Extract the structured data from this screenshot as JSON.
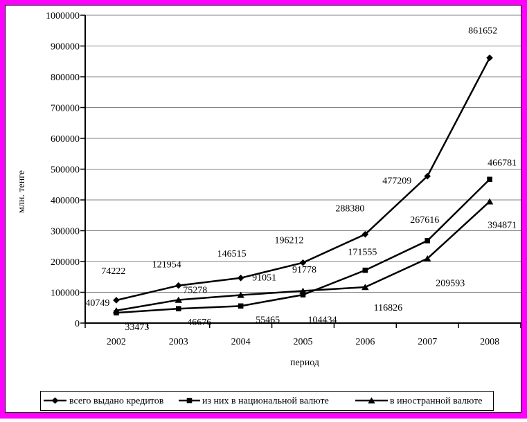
{
  "window": {
    "frame_color": "#ff00ff",
    "canvas_color": "#ffffff",
    "canvas_border_color": "#000000"
  },
  "colors": {
    "grid": "#808080",
    "axis": "#000000",
    "series": "#000000",
    "text": "#000000"
  },
  "chart_data": {
    "type": "line",
    "title": "",
    "xlabel": "период",
    "ylabel": "млн. тенге",
    "categories": [
      "2002",
      "2003",
      "2004",
      "2005",
      "2006",
      "2007",
      "2008"
    ],
    "y_axis": {
      "min": 0,
      "max": 1000000,
      "step": 100000
    },
    "grid": true,
    "legend_position": "bottom",
    "series": [
      {
        "name": "всего выдано кредитов",
        "marker": "diamond",
        "color": "#000000",
        "values": [
          74222,
          121954,
          146515,
          196212,
          288380,
          477209,
          861652
        ]
      },
      {
        "name": "из них в национальной валюте",
        "marker": "square",
        "color": "#000000",
        "values": [
          33473,
          46676,
          55465,
          91778,
          171555,
          267616,
          466781
        ]
      },
      {
        "name": "в иностранной валюте",
        "marker": "triangle",
        "color": "#000000",
        "values": [
          40749,
          75278,
          91051,
          104434,
          116826,
          209593,
          394871
        ]
      }
    ],
    "data_labels_shown": true,
    "label_offsets": [
      [
        [
          -4,
          -43
        ],
        [
          -17,
          -31
        ],
        [
          -13,
          -36
        ],
        [
          -20,
          -33
        ],
        [
          -22,
          -38
        ],
        [
          -44,
          6
        ],
        [
          -10,
          -40
        ]
      ],
      [
        [
          30,
          20
        ],
        [
          30,
          19
        ],
        [
          39,
          19
        ],
        [
          2,
          -37
        ],
        [
          -4,
          -27
        ],
        [
          -4,
          -31
        ],
        [
          18,
          -25
        ]
      ],
      [
        [
          -27,
          -12
        ],
        [
          24,
          -15
        ],
        [
          34,
          -26
        ],
        [
          28,
          41
        ],
        [
          33,
          29
        ],
        [
          33,
          35
        ],
        [
          18,
          33
        ]
      ]
    ]
  }
}
